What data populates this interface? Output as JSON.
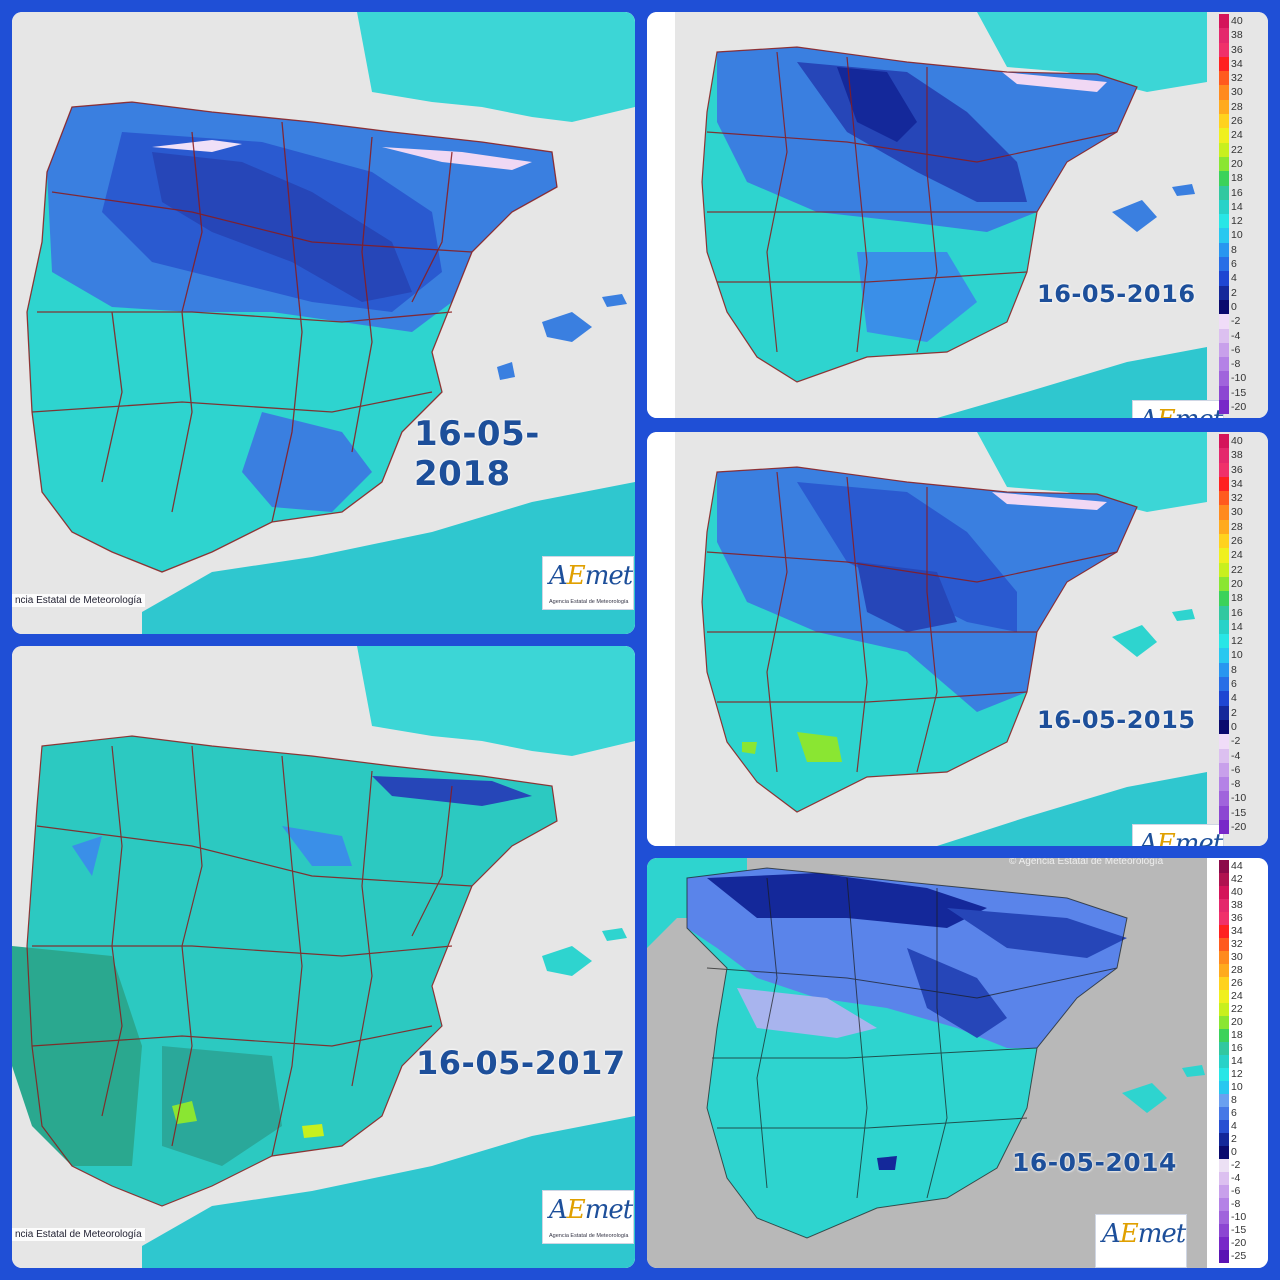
{
  "panels": [
    {
      "id": "p2018",
      "date": "16-05-2018",
      "credit": "ncia Estatal de Meteorología"
    },
    {
      "id": "p2016",
      "date": "16-05-2016"
    },
    {
      "id": "p2015",
      "date": "16-05-2015"
    },
    {
      "id": "p2017",
      "date": "16-05-2017",
      "credit": "ncia Estatal de Meteorología"
    },
    {
      "id": "p2014",
      "date": "16-05-2014",
      "credit_top": "© Agencia Estatal de Meteorología"
    }
  ],
  "logo": {
    "mark_a": "A",
    "mark_e": "E",
    "mark_rest": "met",
    "sub": "Agencia Estatal de Meteorología"
  },
  "scale_small": {
    "labels": [
      "40",
      "38",
      "36",
      "34",
      "32",
      "30",
      "28",
      "26",
      "24",
      "22",
      "20",
      "18",
      "16",
      "14",
      "12",
      "10",
      "8",
      "6",
      "4",
      "2",
      "0",
      "-2",
      "-4",
      "-6",
      "-8",
      "-10",
      "-15",
      "-20"
    ],
    "colors": [
      "#d4145a",
      "#e4286c",
      "#f0306a",
      "#ff2020",
      "#ff5a1e",
      "#ff8a1e",
      "#ffaa1e",
      "#ffd21e",
      "#f0f01e",
      "#c8f01e",
      "#8ae632",
      "#3cd25a",
      "#32c8a0",
      "#28d2c8",
      "#28e6e6",
      "#28c8f0",
      "#2896f0",
      "#286ee6",
      "#1e46d2",
      "#14289a",
      "#0a0a6e",
      "#f0dcf8",
      "#dcc0f0",
      "#c8a0eb",
      "#b482e6",
      "#a064dc",
      "#8c46d2",
      "#7828c8"
    ]
  },
  "scale_big": {
    "labels": [
      "44",
      "42",
      "40",
      "38",
      "36",
      "34",
      "32",
      "30",
      "28",
      "26",
      "24",
      "22",
      "20",
      "18",
      "16",
      "14",
      "12",
      "10",
      "8",
      "6",
      "4",
      "2",
      "0",
      "-2",
      "-4",
      "-6",
      "-8",
      "-10",
      "-15",
      "-20",
      "-25"
    ],
    "colors": [
      "#8c0a4a",
      "#b01250",
      "#d4145a",
      "#e4286c",
      "#f0306a",
      "#ff2020",
      "#ff5a1e",
      "#ff8a1e",
      "#ffaa1e",
      "#ffd21e",
      "#f0f01e",
      "#c8f01e",
      "#8ae632",
      "#3cd25a",
      "#32c8a0",
      "#28d2c8",
      "#28e6e6",
      "#28c8f0",
      "#6aa0f0",
      "#4678e6",
      "#2850d2",
      "#14289a",
      "#0a0a6e",
      "#ece0f4",
      "#dcc0f0",
      "#c8a0eb",
      "#b482e6",
      "#a064dc",
      "#8c46d2",
      "#7828c8",
      "#5a14b4"
    ]
  }
}
